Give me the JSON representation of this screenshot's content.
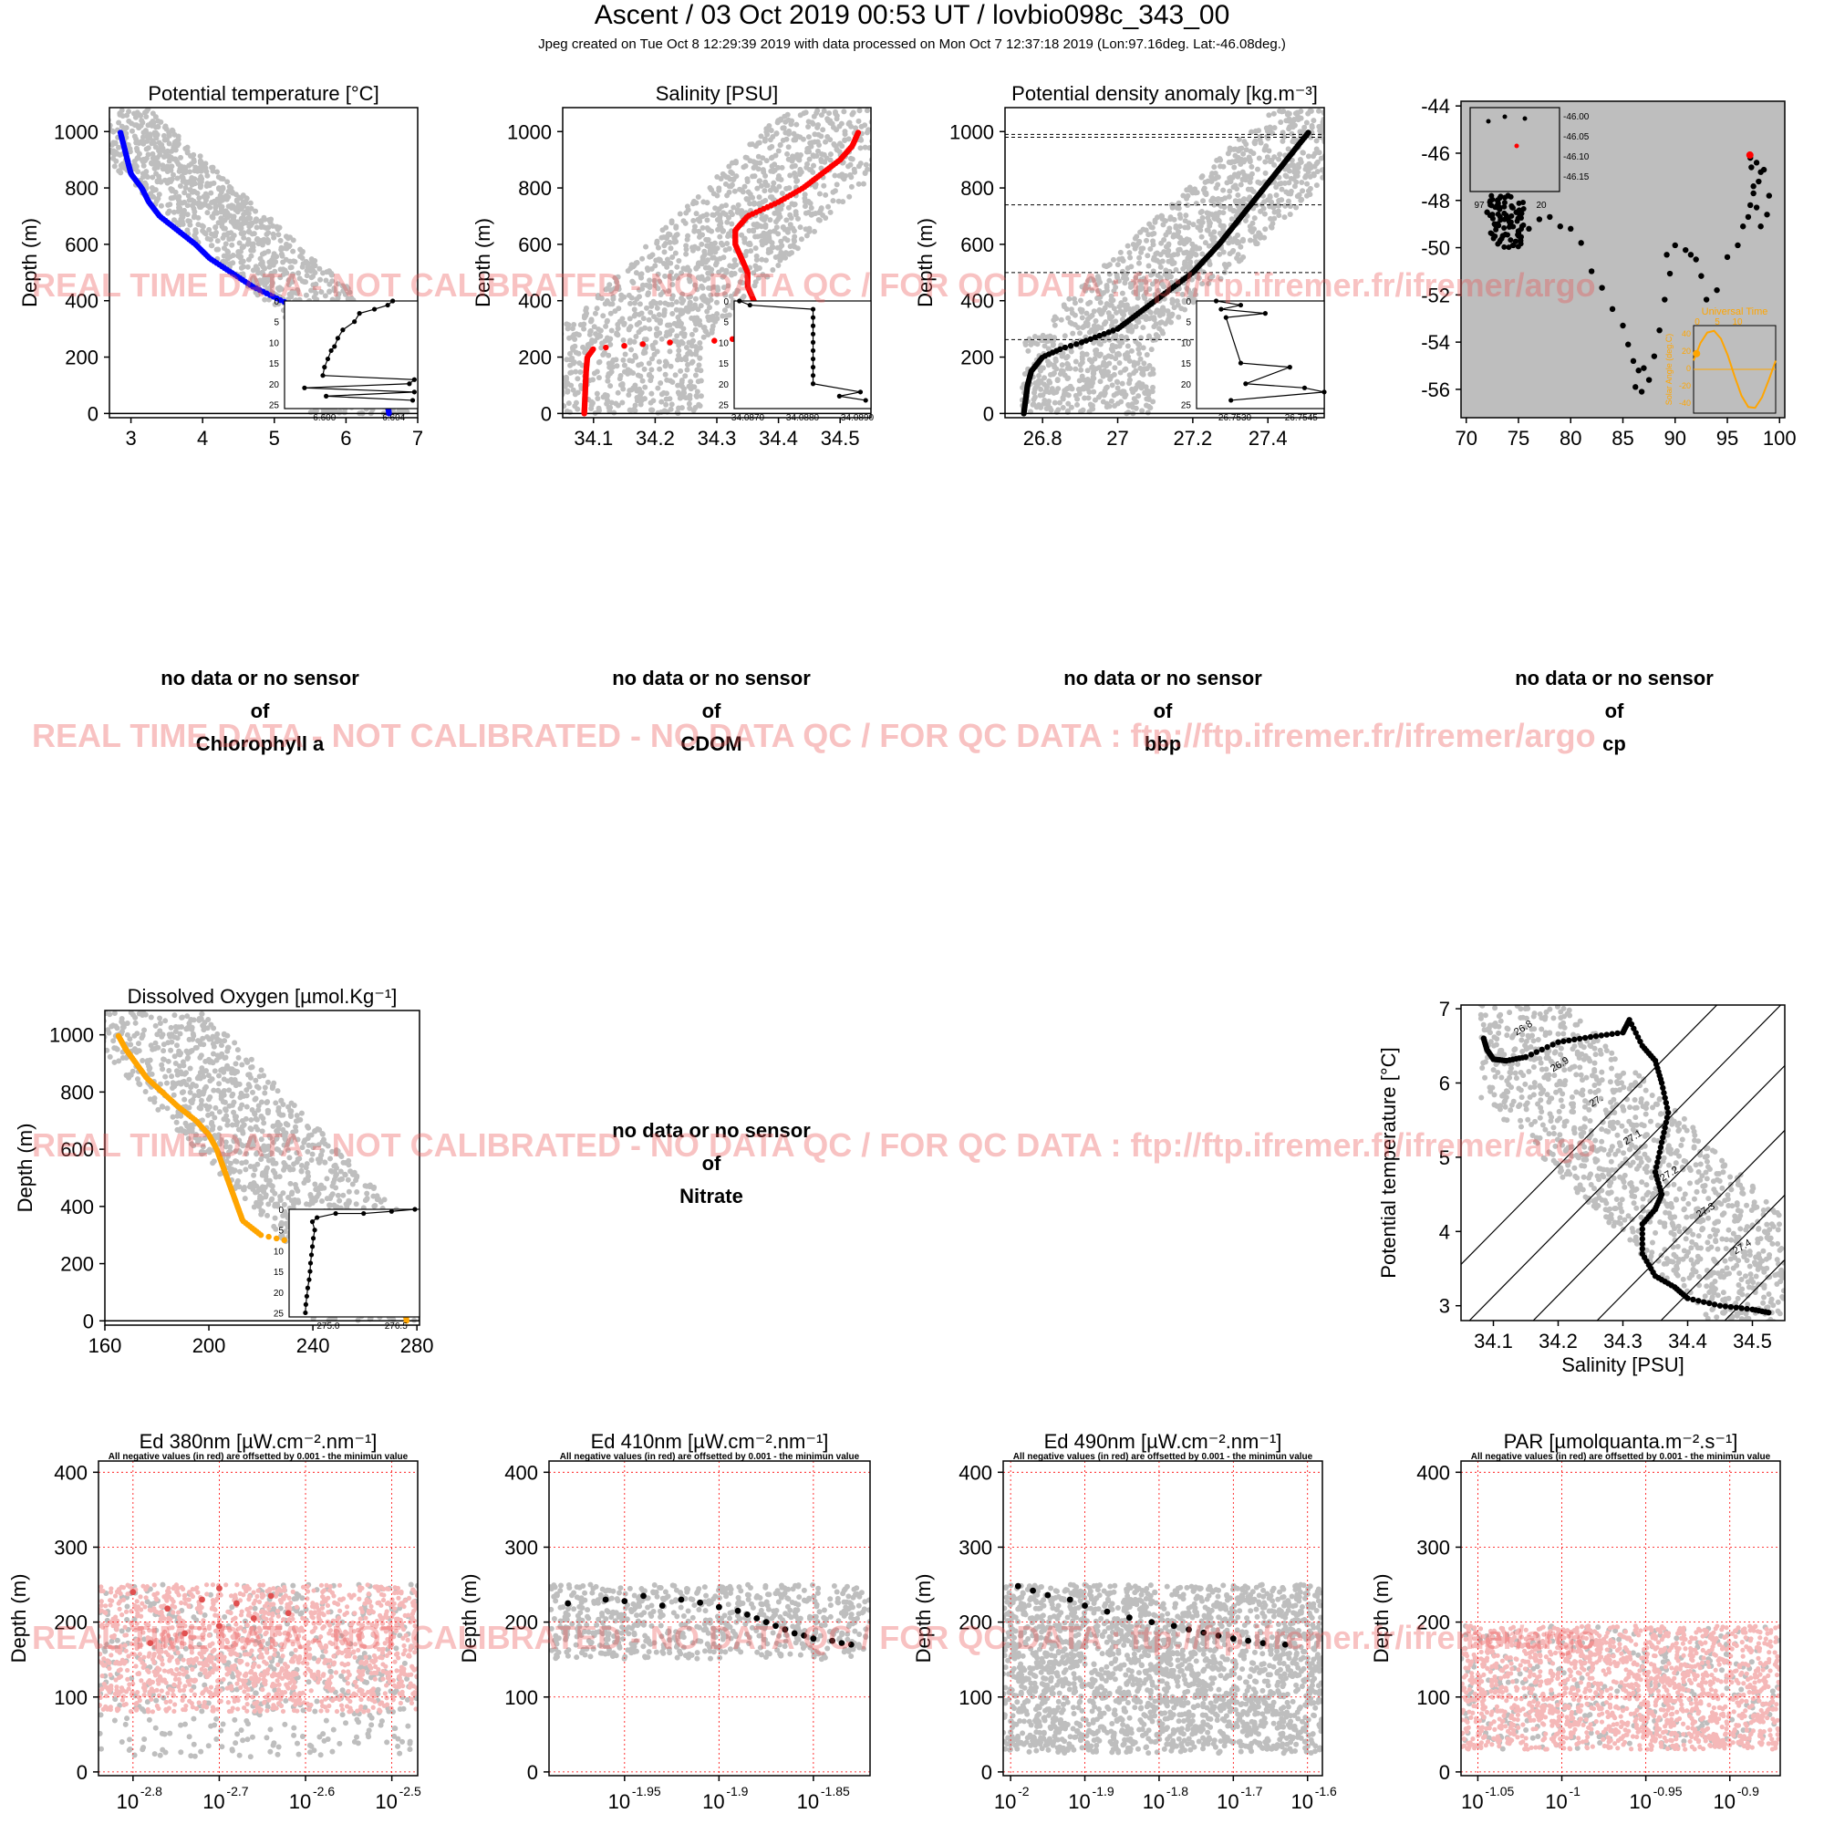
{
  "header": {
    "title": "Ascent / 03 Oct 2019 00:53 UT /  lovbio098c_343_00",
    "subtitle": "Jpeg created on Tue Oct  8 12:29:39 2019 with data processed on Mon Oct  7 12:37:18 2019 (Lon:97.16deg. Lat:-46.08deg.)"
  },
  "watermark": "REAL TIME DATA - NOT CALIBRATED - NO DATA QC   /  FOR QC DATA : ftp://ftp.ifremer.fr/ifremer/argo",
  "nodata_panels": [
    {
      "line1": "no data or no sensor",
      "line2": "of",
      "param": "Chlorophyll a"
    },
    {
      "line1": "no data or no sensor",
      "line2": "of",
      "param": "CDOM"
    },
    {
      "line1": "no data or no sensor",
      "line2": "of",
      "param": "bbp"
    },
    {
      "line1": "no data or no sensor",
      "line2": "of",
      "param": "cp"
    },
    {
      "line1": "no data or no sensor",
      "line2": "of",
      "param": "Nitrate"
    }
  ],
  "colors": {
    "temperature": "#0000ff",
    "salinity": "#ff0000",
    "density": "#000000",
    "oxygen": "#ffa500",
    "climatology": "#bebebe",
    "negative": "#f5b8b8",
    "track": "#000000",
    "last_position": "#ff0000",
    "solar": "#ffa500",
    "grid": "#ff0000"
  },
  "chart_data": [
    {
      "type": "scatter",
      "title": "Potential temperature [°C]",
      "ylabel": "Depth (m)",
      "xlim": [
        2.7,
        7
      ],
      "ylim": [
        1085,
        -15
      ],
      "xticks": [
        3,
        4,
        5,
        6,
        7
      ],
      "yticks": [
        0,
        200,
        400,
        600,
        800,
        1000
      ],
      "series": [
        {
          "depth": [
            0,
            50,
            100,
            150,
            200,
            230,
            250,
            262,
            300,
            350,
            400,
            450,
            500,
            550,
            600,
            650,
            700,
            750,
            800,
            850,
            900,
            950,
            1000
          ],
          "values": [
            6.6,
            6.57,
            6.55,
            6.5,
            6.4,
            6.3,
            6.6,
            6.9,
            6.1,
            5.6,
            5.1,
            4.7,
            4.4,
            4.1,
            3.9,
            3.65,
            3.4,
            3.25,
            3.15,
            3.0,
            2.95,
            2.9,
            2.85
          ]
        }
      ],
      "inset": {
        "xticks": [
          "6.600",
          "6.604"
        ],
        "yticks": [
          "0",
          "5",
          "10",
          "15",
          "20",
          "25"
        ],
        "xlim": [
          6.598,
          6.606
        ],
        "ylim": [
          0,
          26
        ],
        "depth": [
          0,
          1,
          2,
          3,
          5,
          7,
          9,
          11,
          12,
          14,
          16,
          18,
          19,
          20,
          21,
          22,
          23,
          24
        ],
        "values": [
          6.6045,
          6.6042,
          6.6034,
          6.6025,
          6.6022,
          6.6015,
          6.6012,
          6.601,
          6.6008,
          6.6006,
          6.6004,
          6.6003,
          6.6058,
          6.6055,
          6.5992,
          6.6058,
          6.6005,
          6.6057
        ]
      }
    },
    {
      "type": "scatter",
      "title": "Salinity [PSU]",
      "ylabel": "Depth (m)",
      "xlim": [
        34.05,
        34.55
      ],
      "ylim": [
        1085,
        -15
      ],
      "xticks": [
        34.1,
        34.2,
        34.3,
        34.4,
        34.5
      ],
      "yticks": [
        0,
        200,
        400,
        600,
        800,
        1000
      ],
      "series": [
        {
          "depth": [
            0,
            50,
            100,
            150,
            200,
            230,
            250,
            260,
            275,
            300,
            350,
            400,
            450,
            500,
            550,
            600,
            650,
            700,
            750,
            800,
            850,
            900,
            950,
            1000
          ],
          "values": [
            34.085,
            34.086,
            34.087,
            34.088,
            34.09,
            34.1,
            34.2,
            34.32,
            34.34,
            34.36,
            34.37,
            34.36,
            34.35,
            34.35,
            34.34,
            34.33,
            34.33,
            34.35,
            34.4,
            34.44,
            34.47,
            34.5,
            34.52,
            34.53
          ]
        }
      ],
      "inset": {
        "xticks": [
          "34.0870",
          "34.0880",
          "34.0890"
        ],
        "yticks": [
          "0",
          "5",
          "10",
          "15",
          "20",
          "25"
        ],
        "xlim": [
          34.0865,
          34.0891
        ],
        "ylim": [
          0,
          26
        ],
        "depth": [
          0,
          1,
          2,
          4,
          6,
          8,
          10,
          12,
          14,
          16,
          18,
          20,
          22,
          23,
          24
        ],
        "values": [
          34.0866,
          34.0868,
          34.088,
          34.088,
          34.088,
          34.088,
          34.088,
          34.088,
          34.088,
          34.088,
          34.088,
          34.088,
          34.0889,
          34.0885,
          34.089
        ]
      }
    },
    {
      "type": "scatter",
      "title": "Potential density anomaly [kg.m⁻³]",
      "ylabel": "Depth (m)",
      "xlim": [
        26.7,
        27.55
      ],
      "ylim": [
        1085,
        -15
      ],
      "xticks": [
        26.8,
        27.0,
        27.2,
        27.4
      ],
      "yticks": [
        0,
        200,
        400,
        600,
        800,
        1000
      ],
      "mixed_layer_lines": [
        262,
        500,
        740,
        980,
        990
      ],
      "series": [
        {
          "depth": [
            0,
            50,
            100,
            150,
            200,
            230,
            250,
            275,
            300,
            400,
            500,
            600,
            700,
            800,
            900,
            1000
          ],
          "values": [
            26.75,
            26.755,
            26.76,
            26.77,
            26.8,
            26.85,
            26.9,
            26.95,
            27.0,
            27.1,
            27.2,
            27.27,
            27.33,
            27.39,
            27.45,
            27.51
          ]
        }
      ],
      "inset": {
        "xticks": [
          "26.7530",
          "26.7545"
        ],
        "yticks": [
          "0",
          "5",
          "10",
          "15",
          "20",
          "25"
        ],
        "xlim": [
          26.7526,
          26.7552
        ],
        "ylim": [
          0,
          26
        ],
        "depth": [
          0,
          1,
          2,
          3,
          4,
          15,
          16,
          20,
          21,
          22,
          24
        ],
        "values": [
          26.753,
          26.7535,
          26.7531,
          26.754,
          26.7532,
          26.7535,
          26.7545,
          26.7536,
          26.7548,
          26.7552,
          26.7533
        ]
      }
    },
    {
      "type": "scatter",
      "title": "",
      "xlim": [
        69.5,
        100.5
      ],
      "ylim": [
        -57.2,
        -43.8
      ],
      "xticks": [
        70,
        75,
        80,
        85,
        90,
        95,
        100
      ],
      "yticks": [
        -44,
        -46,
        -48,
        -50,
        -52,
        -54,
        -56
      ],
      "series": [
        {
          "lon": [
            72,
            73,
            74,
            75,
            74.5,
            73.5,
            72.5,
            73,
            74,
            74.8,
            75.2,
            76,
            77,
            78,
            79,
            80,
            81,
            82,
            83,
            84,
            85,
            85.5,
            86,
            86.5,
            86.2,
            86.8,
            87.5,
            87,
            88,
            88.5,
            89,
            89.5,
            89.2,
            90,
            91,
            91.5,
            92,
            92.5,
            93,
            94,
            95,
            96,
            96.5,
            97,
            97.2,
            97.5,
            98,
            98.2,
            97.8,
            98.5,
            99,
            98.8,
            98.2,
            97.8,
            97.5,
            97.3,
            97.2,
            97.16
          ],
          "lat": [
            -48.5,
            -48.2,
            -48.8,
            -49.3,
            -49.9,
            -49.5,
            -48.6,
            -48,
            -47.8,
            -48.5,
            -49.7,
            -49.2,
            -48.8,
            -48.7,
            -49.1,
            -49.2,
            -49.8,
            -51,
            -51.7,
            -52.6,
            -53.3,
            -54.1,
            -54.8,
            -55.2,
            -55.9,
            -56.1,
            -55.6,
            -55.1,
            -54.6,
            -53.5,
            -52.2,
            -51.1,
            -50.3,
            -49.9,
            -50.1,
            -50.3,
            -50.5,
            -51.2,
            -52.2,
            -51.8,
            -50.4,
            -49.9,
            -49.1,
            -48.7,
            -48.2,
            -47.7,
            -47.2,
            -46.8,
            -46.4,
            -46.7,
            -47.8,
            -48.6,
            -49.1,
            -48.3,
            -47.4,
            -46.6,
            -46.2,
            -46.08
          ]
        }
      ],
      "last_position": {
        "lon": 97.16,
        "lat": -46.08
      },
      "inset": {
        "yticks": [
          "-46.00",
          "-46.05",
          "-46.10",
          "-46.15"
        ],
        "xticks_partial": [
          "97",
          "20"
        ],
        "lon": [
          97.1,
          97.13,
          97.16,
          97.19
        ],
        "lat": [
          -46.02,
          -46.01,
          -46.08,
          -46.02
        ]
      },
      "solar_inset": {
        "title": "Universal Time",
        "xticks": [
          "0",
          "5",
          "10"
        ],
        "yticks": [
          "40",
          "20",
          "0",
          "-20",
          "-40"
        ],
        "ylabel": "Solar Angle (deg.C)",
        "hours": [
          0,
          2,
          4,
          6,
          8,
          10,
          12,
          14,
          16,
          18,
          20,
          22,
          24
        ],
        "angle": [
          10,
          30,
          42,
          44,
          35,
          16,
          -8,
          -30,
          -43,
          -44,
          -32,
          -12,
          10
        ],
        "profile_time_hour": 0.88,
        "profile_angle": 18
      }
    },
    {
      "type": "scatter",
      "title": "Dissolved Oxygen [µmol.Kg⁻¹]",
      "ylabel": "Depth (m)",
      "xlim": [
        160,
        281
      ],
      "ylim": [
        1085,
        -15
      ],
      "xticks": [
        160,
        200,
        240,
        280
      ],
      "yticks": [
        0,
        200,
        400,
        600,
        800,
        1000
      ],
      "series": [
        {
          "depth": [
            0,
            50,
            100,
            150,
            200,
            230,
            260,
            300,
            350,
            400,
            450,
            500,
            550,
            600,
            650,
            700,
            750,
            800,
            850,
            900,
            950,
            1000
          ],
          "values": [
            276,
            275.5,
            275,
            274,
            272,
            260,
            240,
            220,
            213,
            211,
            209,
            207,
            205,
            203,
            200,
            195,
            188,
            182,
            176,
            172,
            168,
            165
          ]
        }
      ],
      "inset": {
        "xticks": [
          "275.0",
          "276.5"
        ],
        "yticks": [
          "0",
          "5",
          "10",
          "15",
          "20",
          "25"
        ],
        "xlim": [
          274.6,
          277.4
        ],
        "ylim": [
          0,
          26
        ],
        "depth": [
          0,
          0.5,
          1,
          1,
          2,
          3,
          5,
          7,
          9,
          11,
          13,
          15,
          17,
          19,
          21,
          23,
          25
        ],
        "values": [
          277.3,
          276.8,
          276.2,
          275.6,
          275.2,
          275.1,
          275.15,
          275.12,
          275.1,
          275.08,
          275.06,
          275.05,
          275.03,
          275.0,
          274.98,
          274.96,
          274.95
        ]
      }
    },
    {
      "type": "line",
      "xlabel": "Salinity [PSU]",
      "ylabel": "Potential temperature [°C]",
      "xlim": [
        34.05,
        34.55
      ],
      "ylim": [
        2.8,
        7.05
      ],
      "xticks": [
        34.1,
        34.2,
        34.3,
        34.4,
        34.5
      ],
      "yticks": [
        3,
        4,
        5,
        6,
        7
      ],
      "isopycnal_labels": [
        "26.8",
        "26.9",
        "27.",
        "27.1",
        "27.2",
        "27.3",
        "27.4"
      ],
      "series": [
        {
          "salinity": [
            34.085,
            34.09,
            34.1,
            34.12,
            34.15,
            34.2,
            34.25,
            34.3,
            34.31,
            34.33,
            34.35,
            34.36,
            34.37,
            34.36,
            34.35,
            34.36,
            34.35,
            34.33,
            34.33,
            34.35,
            34.38,
            34.4,
            34.45,
            34.5,
            34.53
          ],
          "theta": [
            6.6,
            6.45,
            6.32,
            6.3,
            6.35,
            6.55,
            6.62,
            6.68,
            6.85,
            6.5,
            6.3,
            6.0,
            5.6,
            5.2,
            4.8,
            4.5,
            4.3,
            4.1,
            3.7,
            3.4,
            3.25,
            3.1,
            3.0,
            2.95,
            2.9
          ]
        }
      ]
    },
    {
      "type": "scatter",
      "title": "Ed 380nm [µW.cm⁻².nm⁻¹]",
      "note": "All negative values (in red) are offsetted by 0.001 - the minimun value",
      "ylabel": "Depth (m)",
      "log_x": true,
      "xlim": [
        -2.84,
        -2.47
      ],
      "ylim": [
        415,
        -5
      ],
      "xtick_exponents": [
        "-2.8",
        "-2.7",
        "-2.6",
        "-2.5"
      ],
      "yticks": [
        0,
        100,
        200,
        300,
        400
      ],
      "series": [
        {
          "negative_values": true,
          "depth": [
            172,
            185,
            195,
            205,
            212,
            218,
            225,
            230,
            235,
            240,
            245
          ],
          "values": [
            -2.78,
            -2.74,
            -2.7,
            -2.66,
            -2.62,
            -2.76,
            -2.68,
            -2.72,
            -2.64,
            -2.8,
            -2.7
          ]
        }
      ]
    },
    {
      "type": "scatter",
      "title": "Ed 410nm [µW.cm⁻².nm⁻¹]",
      "note": "All negative values (in red) are offsetted by 0.001 - the minimun value",
      "ylabel": "Depth (m)",
      "log_x": true,
      "xlim": [
        -1.99,
        -1.82
      ],
      "ylim": [
        415,
        -5
      ],
      "xtick_exponents": [
        "-1.95",
        "-1.9",
        "-1.85"
      ],
      "yticks": [
        0,
        100,
        200,
        300,
        400
      ],
      "series": [
        {
          "depth": [
            225,
            230,
            228,
            235,
            222,
            230,
            226,
            220,
            215,
            210,
            205,
            200,
            195,
            190,
            185,
            182,
            178,
            175,
            172,
            170
          ],
          "values": [
            -1.98,
            -1.96,
            -1.95,
            -1.94,
            -1.93,
            -1.92,
            -1.91,
            -1.9,
            -1.89,
            -1.885,
            -1.88,
            -1.875,
            -1.87,
            -1.865,
            -1.86,
            -1.855,
            -1.85,
            -1.84,
            -1.835,
            -1.83
          ]
        }
      ]
    },
    {
      "type": "scatter",
      "title": "Ed 490nm [µW.cm⁻².nm⁻¹]",
      "note": "All negative values (in red) are offsetted by 0.001 - the minimun value",
      "ylabel": "Depth (m)",
      "log_x": true,
      "xlim": [
        -2.01,
        -1.58
      ],
      "ylim": [
        415,
        -5
      ],
      "xtick_exponents": [
        "-2",
        "-1.9",
        "-1.8",
        "-1.7",
        "-1.6"
      ],
      "yticks": [
        0,
        100,
        200,
        300,
        400
      ],
      "series": [
        {
          "depth": [
            248,
            242,
            236,
            230,
            222,
            214,
            206,
            200,
            195,
            190,
            186,
            182,
            178,
            175,
            172,
            170
          ],
          "values": [
            -1.99,
            -1.97,
            -1.95,
            -1.92,
            -1.9,
            -1.87,
            -1.84,
            -1.81,
            -1.78,
            -1.76,
            -1.74,
            -1.72,
            -1.7,
            -1.68,
            -1.66,
            -1.63
          ]
        }
      ]
    },
    {
      "type": "scatter",
      "title": "PAR [µmolquanta.m⁻².s⁻¹]",
      "note": "All negative values (in red) are offsetted by 0.001 - the minimun value",
      "ylabel": "Depth (m)",
      "log_x": true,
      "xlim": [
        -1.06,
        -0.87
      ],
      "ylim": [
        415,
        -5
      ],
      "xtick_exponents": [
        "-1.05",
        "-1",
        "-0.95",
        "-0.9"
      ],
      "yticks": [
        0,
        100,
        200,
        300,
        400
      ],
      "series": [
        {
          "negative_values": true,
          "depth": [],
          "values": []
        }
      ]
    }
  ]
}
